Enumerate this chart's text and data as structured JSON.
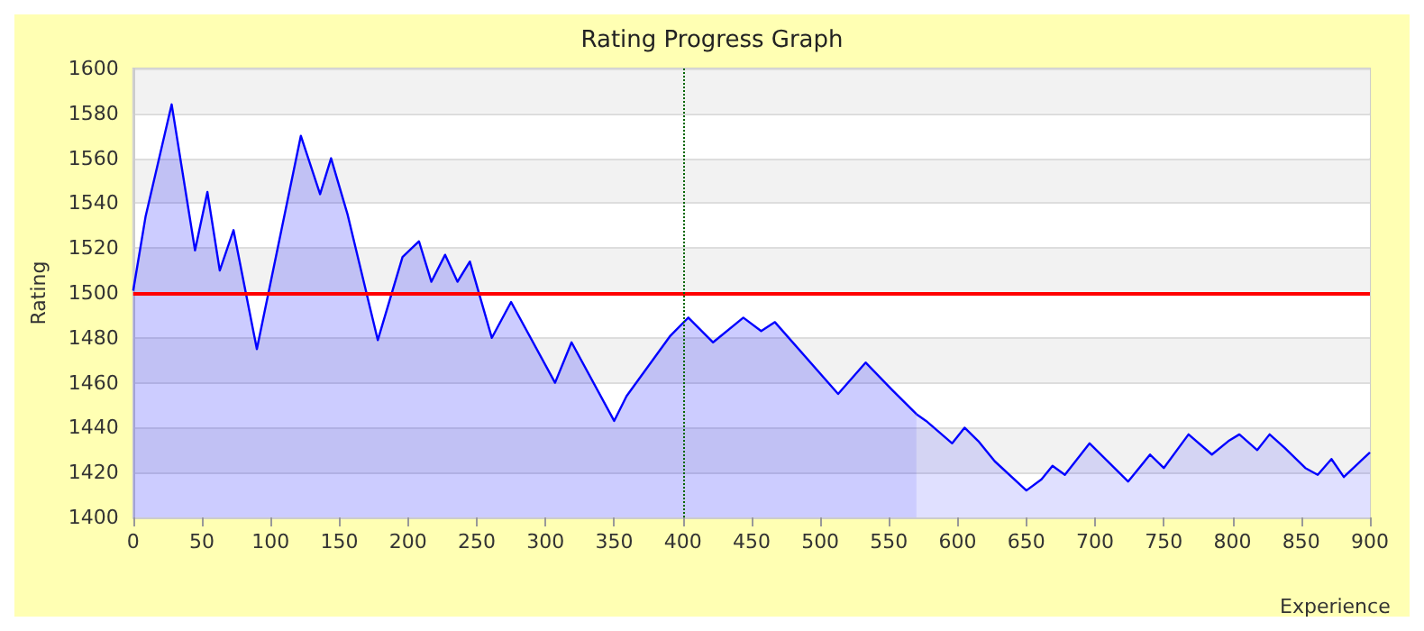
{
  "chart_data": {
    "type": "area",
    "title": "Rating Progress Graph",
    "xlabel": "Experience",
    "ylabel": "Rating",
    "xlim": [
      0,
      900
    ],
    "xticks": [
      0,
      50,
      100,
      150,
      200,
      250,
      300,
      350,
      400,
      450,
      500,
      550,
      600,
      650,
      700,
      750,
      800,
      850,
      900
    ],
    "ylim": [
      1400,
      1600
    ],
    "yticks": [
      1400,
      1420,
      1440,
      1460,
      1480,
      1500,
      1520,
      1540,
      1560,
      1580,
      1600
    ],
    "grid": "y",
    "marker": "none",
    "line_style": "solid",
    "ref_lines": [
      {
        "axis": "y",
        "value": 1500,
        "color": "#ff0000",
        "line_style": "solid"
      },
      {
        "axis": "x",
        "value": 400,
        "color": "#006600",
        "line_style": "dotted"
      }
    ],
    "series": [
      {
        "color": "#0000ff",
        "x": [
          0,
          9,
          28,
          45,
          54,
          63,
          73,
          90,
          122,
          136,
          144,
          156,
          178,
          196,
          208,
          217,
          227,
          236,
          245,
          261,
          275,
          307,
          319,
          350,
          359,
          391,
          404,
          422,
          444,
          457,
          467,
          513,
          533,
          552,
          570
        ],
        "values": [
          1501,
          1534,
          1584,
          1519,
          1545,
          1510,
          1528,
          1475,
          1570,
          1544,
          1560,
          1535,
          1479,
          1516,
          1523,
          1505,
          1517,
          1505,
          1514,
          1480,
          1496,
          1460,
          1478,
          1443,
          1454,
          1481,
          1489,
          1478,
          1489,
          1483,
          1487,
          1455,
          1469,
          1457,
          1446
        ]
      },
      {
        "color": "#0000ff",
        "x": [
          570,
          577,
          596,
          605,
          615,
          627,
          650,
          661,
          669,
          678,
          696,
          724,
          740,
          750,
          768,
          785,
          797,
          805,
          818,
          827,
          838,
          853,
          862,
          872,
          881,
          900
        ],
        "values": [
          1446,
          1443,
          1433,
          1440,
          1434,
          1425,
          1412,
          1417,
          1423,
          1419,
          1433,
          1416,
          1428,
          1422,
          1437,
          1428,
          1434,
          1437,
          1430,
          1437,
          1431,
          1422,
          1419,
          1426,
          1418,
          1429
        ]
      }
    ]
  }
}
